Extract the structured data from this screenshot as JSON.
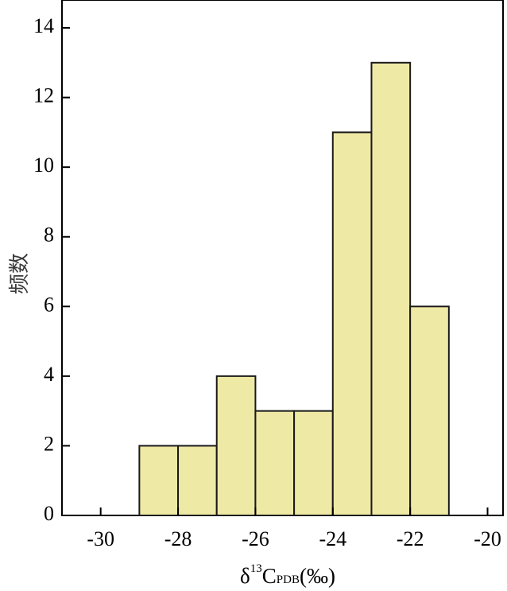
{
  "chart_data": {
    "type": "bar",
    "subtype": "histogram",
    "bins": [
      {
        "x0": -29,
        "x1": -28,
        "count": 2
      },
      {
        "x0": -28,
        "x1": -27,
        "count": 2
      },
      {
        "x0": -27,
        "x1": -26,
        "count": 4
      },
      {
        "x0": -26,
        "x1": -25,
        "count": 3
      },
      {
        "x0": -25,
        "x1": -24,
        "count": 3
      },
      {
        "x0": -24,
        "x1": -23,
        "count": 11
      },
      {
        "x0": -23,
        "x1": -22,
        "count": 13
      },
      {
        "x0": -22,
        "x1": -21,
        "count": 6
      }
    ],
    "xlim": [
      -31,
      -19.6
    ],
    "ylim": [
      0,
      14.8
    ],
    "xticks": [
      -30,
      -28,
      -26,
      -24,
      -22,
      -20
    ],
    "xtick_labels": [
      "-30",
      "-28",
      "-26",
      "-24",
      "-22",
      "-20"
    ],
    "yticks": [
      0,
      2,
      4,
      6,
      8,
      10,
      12,
      14
    ],
    "ytick_labels": [
      "0",
      "2",
      "4",
      "6",
      "8",
      "10",
      "12",
      "14"
    ],
    "ylabel": "频数",
    "xlabel": {
      "delta": "δ",
      "superscript": "13",
      "element": "C",
      "subscript": "PDB",
      "unit": "(‰)"
    },
    "grid": false,
    "bar_color": "#efe9a6",
    "edge_color": "#1a1a1a"
  }
}
